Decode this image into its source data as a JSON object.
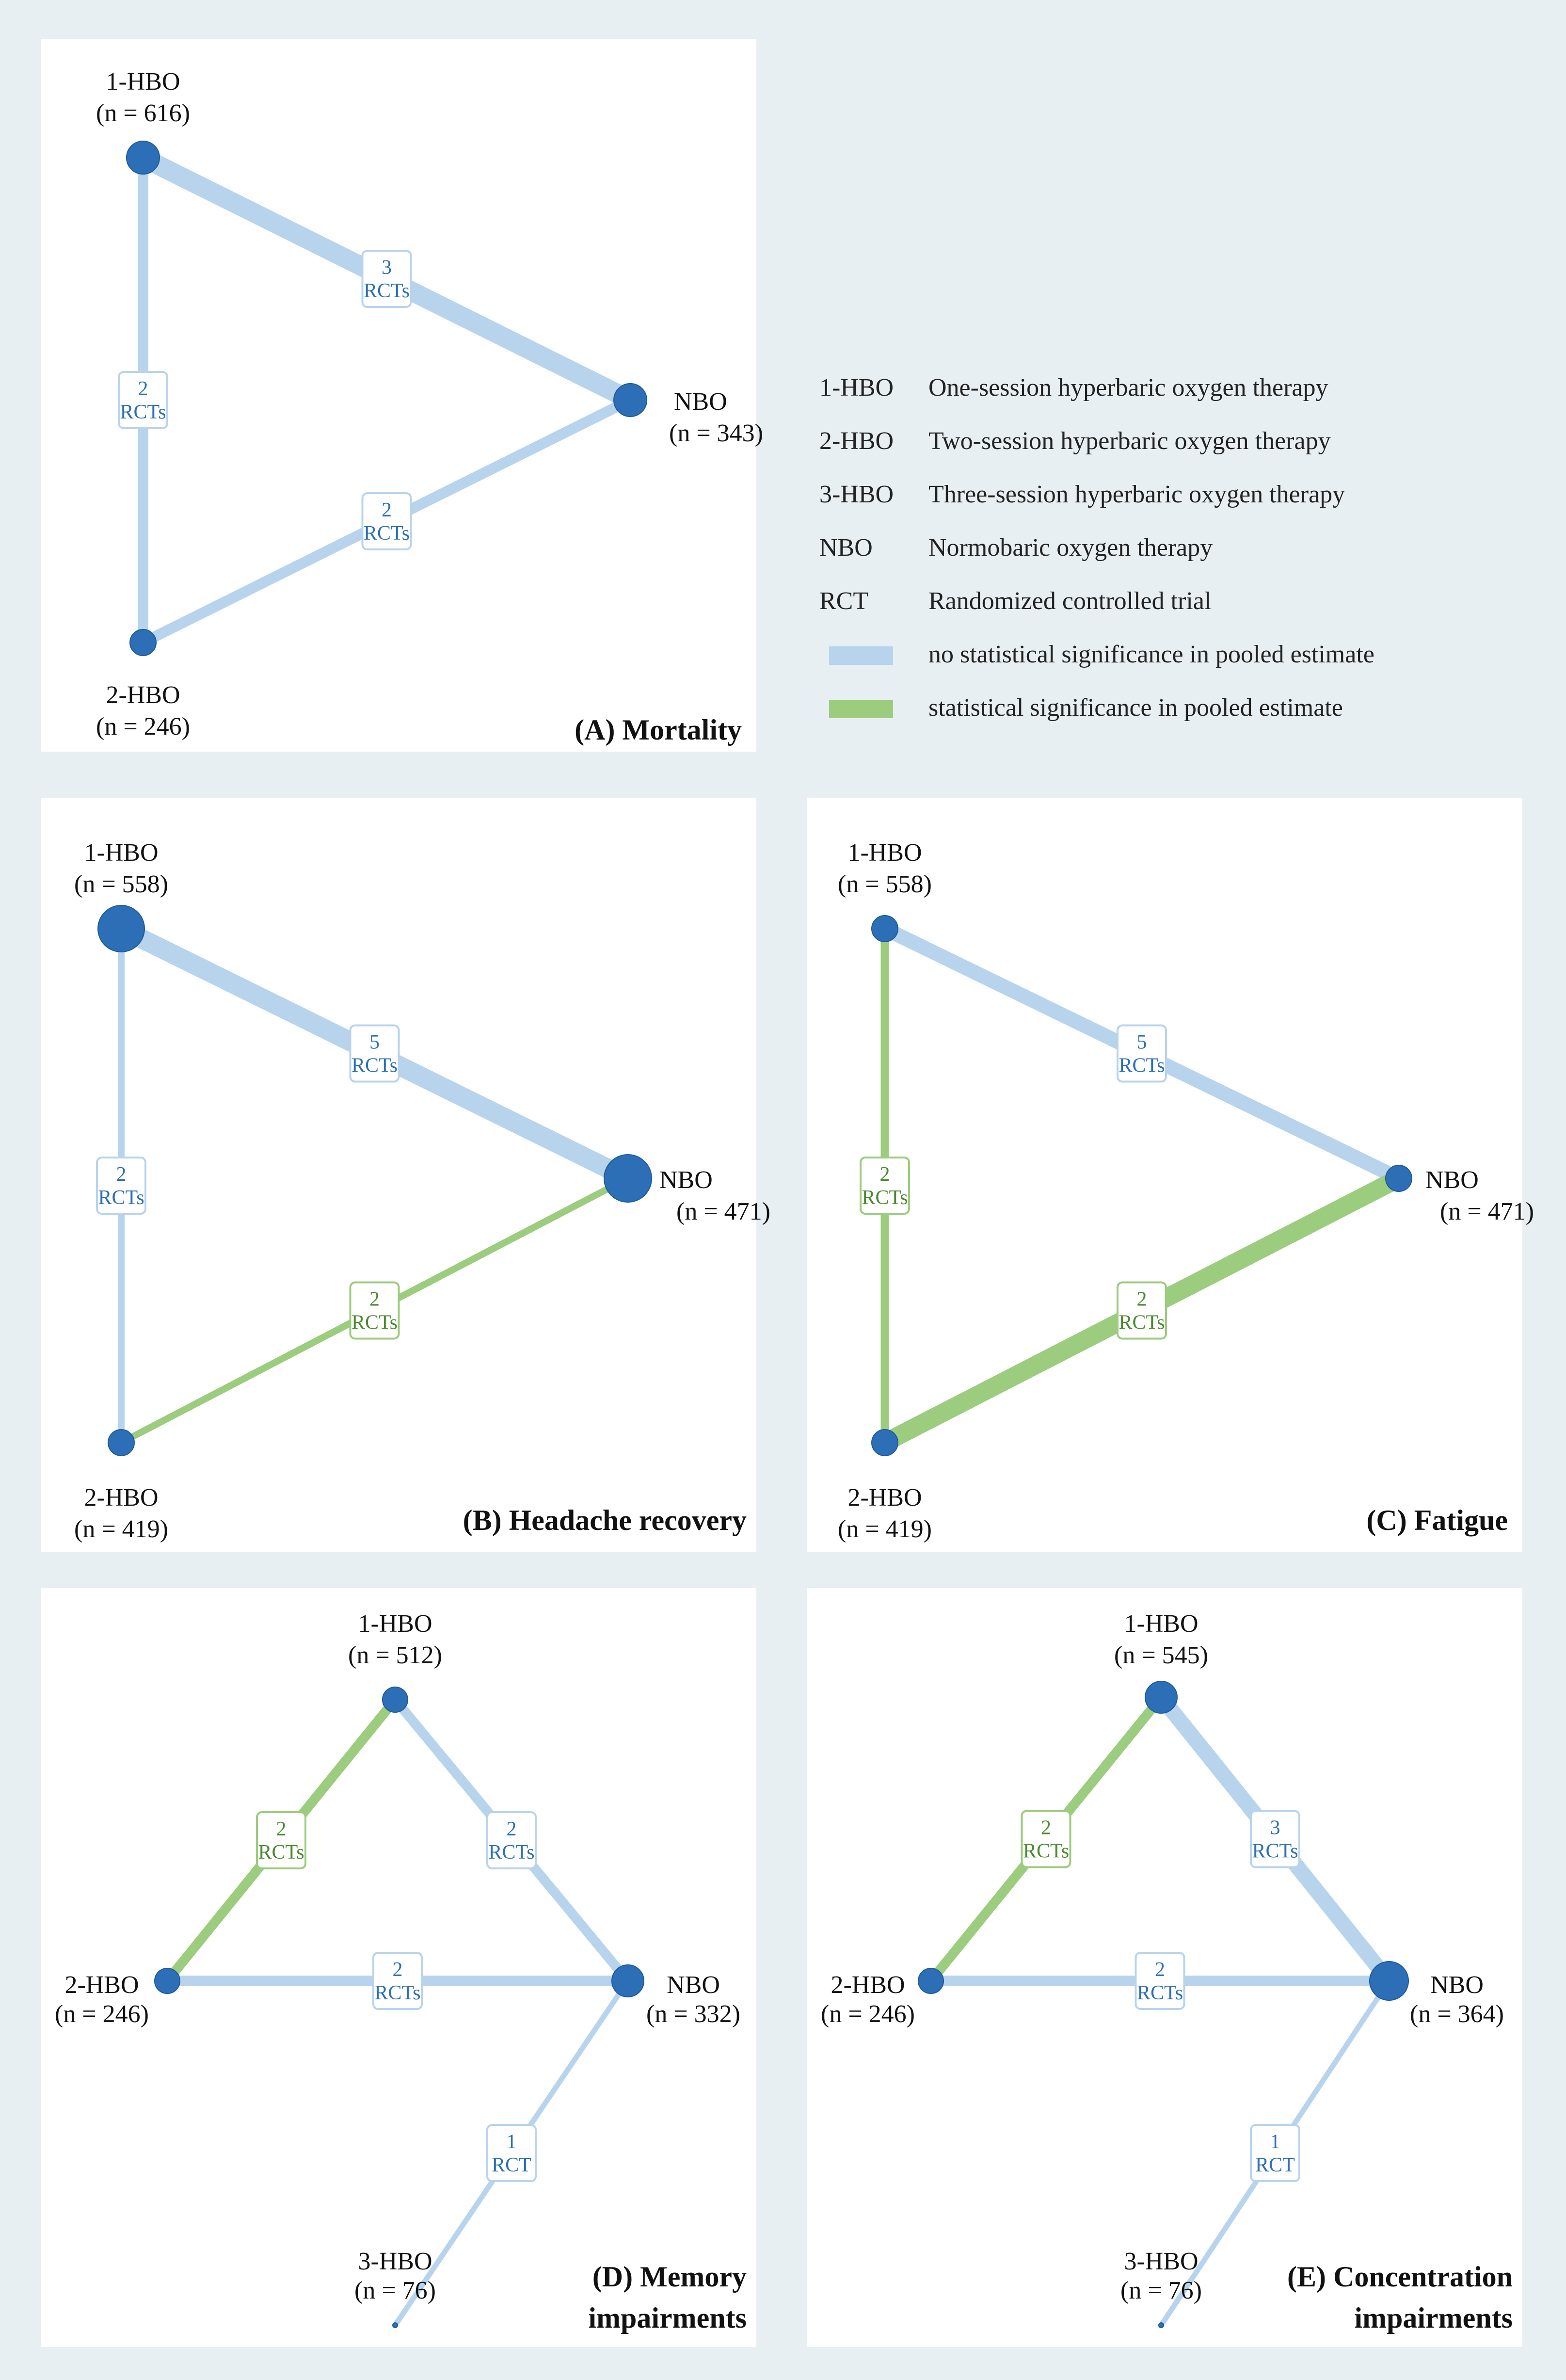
{
  "colors": {
    "node": "#2c6fb7",
    "nonsig": "#b8d4ec",
    "sig": "#9ccc7e",
    "label_nonsig": "#2c6fb7",
    "label_sig": "#4a8a2e"
  },
  "legend": {
    "items": [
      {
        "abbr": "1-HBO",
        "desc": "One-session hyperbaric oxygen therapy"
      },
      {
        "abbr": "2-HBO",
        "desc": "Two-session hyperbaric oxygen therapy"
      },
      {
        "abbr": "3-HBO",
        "desc": "Three-session hyperbaric oxygen therapy"
      },
      {
        "abbr": "NBO",
        "desc": "Normobaric oxygen therapy"
      },
      {
        "abbr": "RCT",
        "desc": "Randomized controlled trial"
      }
    ],
    "nonsig_label": "no statistical significance in pooled estimate",
    "sig_label": "statistical significance in pooled estimate"
  },
  "panels": [
    {
      "id": "A",
      "title_lines": [
        "(A) Mortality"
      ],
      "nodes": [
        {
          "name": "1-HBO",
          "n_label": "(n = 616)"
        },
        {
          "name": "NBO",
          "n_label": "(n = 343)"
        },
        {
          "name": "2-HBO",
          "n_label": "(n = 246)"
        }
      ],
      "edges": [
        {
          "from": "1-HBO",
          "to": "NBO",
          "count": "3",
          "unit": "RCTs",
          "significant": false
        },
        {
          "from": "1-HBO",
          "to": "2-HBO",
          "count": "2",
          "unit": "RCTs",
          "significant": false
        },
        {
          "from": "2-HBO",
          "to": "NBO",
          "count": "2",
          "unit": "RCTs",
          "significant": false
        }
      ]
    },
    {
      "id": "B",
      "title_lines": [
        "(B) Headache recovery"
      ],
      "nodes": [
        {
          "name": "1-HBO",
          "n_label": "(n = 558)"
        },
        {
          "name": "NBO",
          "n_label": "(n = 471)"
        },
        {
          "name": "2-HBO",
          "n_label": "(n = 419)"
        }
      ],
      "edges": [
        {
          "from": "1-HBO",
          "to": "NBO",
          "count": "5",
          "unit": "RCTs",
          "significant": false
        },
        {
          "from": "1-HBO",
          "to": "2-HBO",
          "count": "2",
          "unit": "RCTs",
          "significant": false
        },
        {
          "from": "2-HBO",
          "to": "NBO",
          "count": "2",
          "unit": "RCTs",
          "significant": true
        }
      ]
    },
    {
      "id": "C",
      "title_lines": [
        "(C) Fatigue"
      ],
      "nodes": [
        {
          "name": "1-HBO",
          "n_label": "(n = 558)"
        },
        {
          "name": "NBO",
          "n_label": "(n = 471)"
        },
        {
          "name": "2-HBO",
          "n_label": "(n = 419)"
        }
      ],
      "edges": [
        {
          "from": "1-HBO",
          "to": "NBO",
          "count": "5",
          "unit": "RCTs",
          "significant": false
        },
        {
          "from": "1-HBO",
          "to": "2-HBO",
          "count": "2",
          "unit": "RCTs",
          "significant": true
        },
        {
          "from": "2-HBO",
          "to": "NBO",
          "count": "2",
          "unit": "RCTs",
          "significant": true
        }
      ]
    },
    {
      "id": "D",
      "title_lines": [
        "(D) Memory",
        "impairments"
      ],
      "nodes": [
        {
          "name": "1-HBO",
          "n_label": "(n = 512)"
        },
        {
          "name": "2-HBO",
          "n_label": "(n = 246)"
        },
        {
          "name": "NBO",
          "n_label": "(n = 332)"
        },
        {
          "name": "3-HBO",
          "n_label": "(n = 76)"
        }
      ],
      "edges": [
        {
          "from": "2-HBO",
          "to": "1-HBO",
          "count": "2",
          "unit": "RCTs",
          "significant": true
        },
        {
          "from": "1-HBO",
          "to": "NBO",
          "count": "2",
          "unit": "RCTs",
          "significant": false
        },
        {
          "from": "2-HBO",
          "to": "NBO",
          "count": "2",
          "unit": "RCTs",
          "significant": false
        },
        {
          "from": "NBO",
          "to": "3-HBO",
          "count": "1",
          "unit": "RCT",
          "significant": false
        }
      ]
    },
    {
      "id": "E",
      "title_lines": [
        "(E) Concentration",
        "impairments"
      ],
      "nodes": [
        {
          "name": "1-HBO",
          "n_label": "(n = 545)"
        },
        {
          "name": "2-HBO",
          "n_label": "(n = 246)"
        },
        {
          "name": "NBO",
          "n_label": "(n = 364)"
        },
        {
          "name": "3-HBO",
          "n_label": "(n = 76)"
        }
      ],
      "edges": [
        {
          "from": "2-HBO",
          "to": "1-HBO",
          "count": "2",
          "unit": "RCTs",
          "significant": true
        },
        {
          "from": "1-HBO",
          "to": "NBO",
          "count": "3",
          "unit": "RCTs",
          "significant": false
        },
        {
          "from": "2-HBO",
          "to": "NBO",
          "count": "2",
          "unit": "RCTs",
          "significant": false
        },
        {
          "from": "NBO",
          "to": "3-HBO",
          "count": "1",
          "unit": "RCT",
          "significant": false
        }
      ]
    }
  ]
}
